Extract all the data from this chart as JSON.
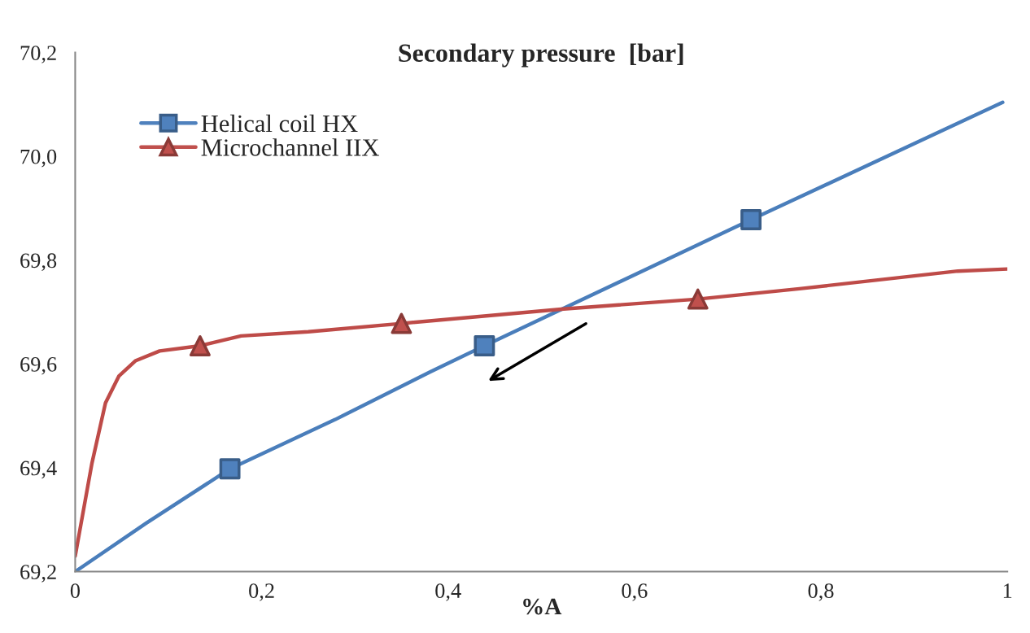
{
  "chart_data": {
    "type": "line",
    "title": "Secondary pressure  [bar]",
    "xlabel": "%A",
    "xlim": [
      0,
      1
    ],
    "ylim": [
      69.2,
      70.2
    ],
    "xticks": [
      0,
      {
        "value": 0.2,
        "label": "0,2"
      },
      {
        "value": 0.4,
        "label": "0,4"
      },
      {
        "value": 0.6,
        "label": "0,6"
      },
      {
        "value": 0.8,
        "label": "0,8"
      },
      1
    ],
    "yticks": [
      {
        "value": 69.2,
        "label": "69,2"
      },
      {
        "value": 69.4,
        "label": "69,4"
      },
      {
        "value": 69.6,
        "label": "69,6"
      },
      {
        "value": 69.8,
        "label": "69,8"
      },
      {
        "value": 70.0,
        "label": "70,0"
      },
      {
        "value": 70.2,
        "label": "70,2"
      }
    ],
    "grid": false,
    "legend": "top left",
    "line_style": "solid",
    "series": [
      {
        "marker": "none",
        "color": "#4a7ebb",
        "x": [
          0,
          0.076,
          0.166,
          0.279,
          0.381,
          0.439,
          0.725,
          0.995
        ],
        "values": [
          69.2,
          69.293,
          69.398,
          69.493,
          69.585,
          69.635,
          69.878,
          70.104
        ]
      },
      {
        "type": "scatter",
        "name": "Helical coil HX",
        "marker": "square",
        "color": "#4f81bd",
        "x": [
          0.166,
          0.439,
          0.725
        ],
        "values": [
          69.398,
          69.635,
          69.878
        ]
      },
      {
        "marker": "none",
        "color": "#be4b48",
        "x": [
          0,
          0.018,
          0.0325,
          0.047,
          0.0645,
          0.0906,
          0.134,
          0.178,
          0.25,
          0.35,
          0.524,
          0.668,
          0.777,
          0.947,
          1.0
        ],
        "values": [
          69.23,
          69.409,
          69.525,
          69.577,
          69.606,
          69.625,
          69.635,
          69.654,
          69.662,
          69.678,
          69.706,
          69.725,
          69.745,
          69.779,
          69.783
        ]
      },
      {
        "type": "scatter",
        "name": "Microchannel IIX",
        "marker": "triangle",
        "color": "#c0504d",
        "x": [
          0.134,
          0.35,
          0.668
        ],
        "values": [
          69.635,
          69.678,
          69.725
        ]
      }
    ]
  }
}
